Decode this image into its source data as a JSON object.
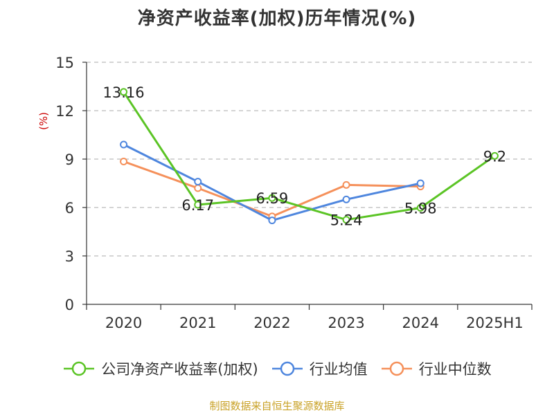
{
  "chart_data": {
    "type": "line",
    "title": "净资产收益率(加权)历年情况(%)",
    "ylabel": "(%)",
    "xlabel": "",
    "categories": [
      "2020",
      "2021",
      "2022",
      "2023",
      "2024",
      "2025H1"
    ],
    "ylim": [
      0,
      15
    ],
    "yticks": [
      0,
      3,
      6,
      9,
      12,
      15
    ],
    "grid": true,
    "legend_position": "bottom",
    "series": [
      {
        "name": "公司净资产收益率(加权)",
        "color": "#5bc425",
        "values": [
          13.16,
          6.17,
          6.59,
          5.24,
          5.98,
          9.2
        ],
        "data_labels": [
          "13.16",
          "6.17",
          "6.59",
          "5.24",
          "5.98",
          "9.2"
        ]
      },
      {
        "name": "行业均值",
        "color": "#4e86de",
        "values": [
          9.9,
          7.6,
          5.2,
          6.5,
          7.5,
          null
        ]
      },
      {
        "name": "行业中位数",
        "color": "#f5905a",
        "values": [
          8.85,
          7.2,
          5.45,
          7.4,
          7.3,
          null
        ]
      }
    ]
  },
  "footer": {
    "source": "制图数据来自恒生聚源数据库"
  }
}
